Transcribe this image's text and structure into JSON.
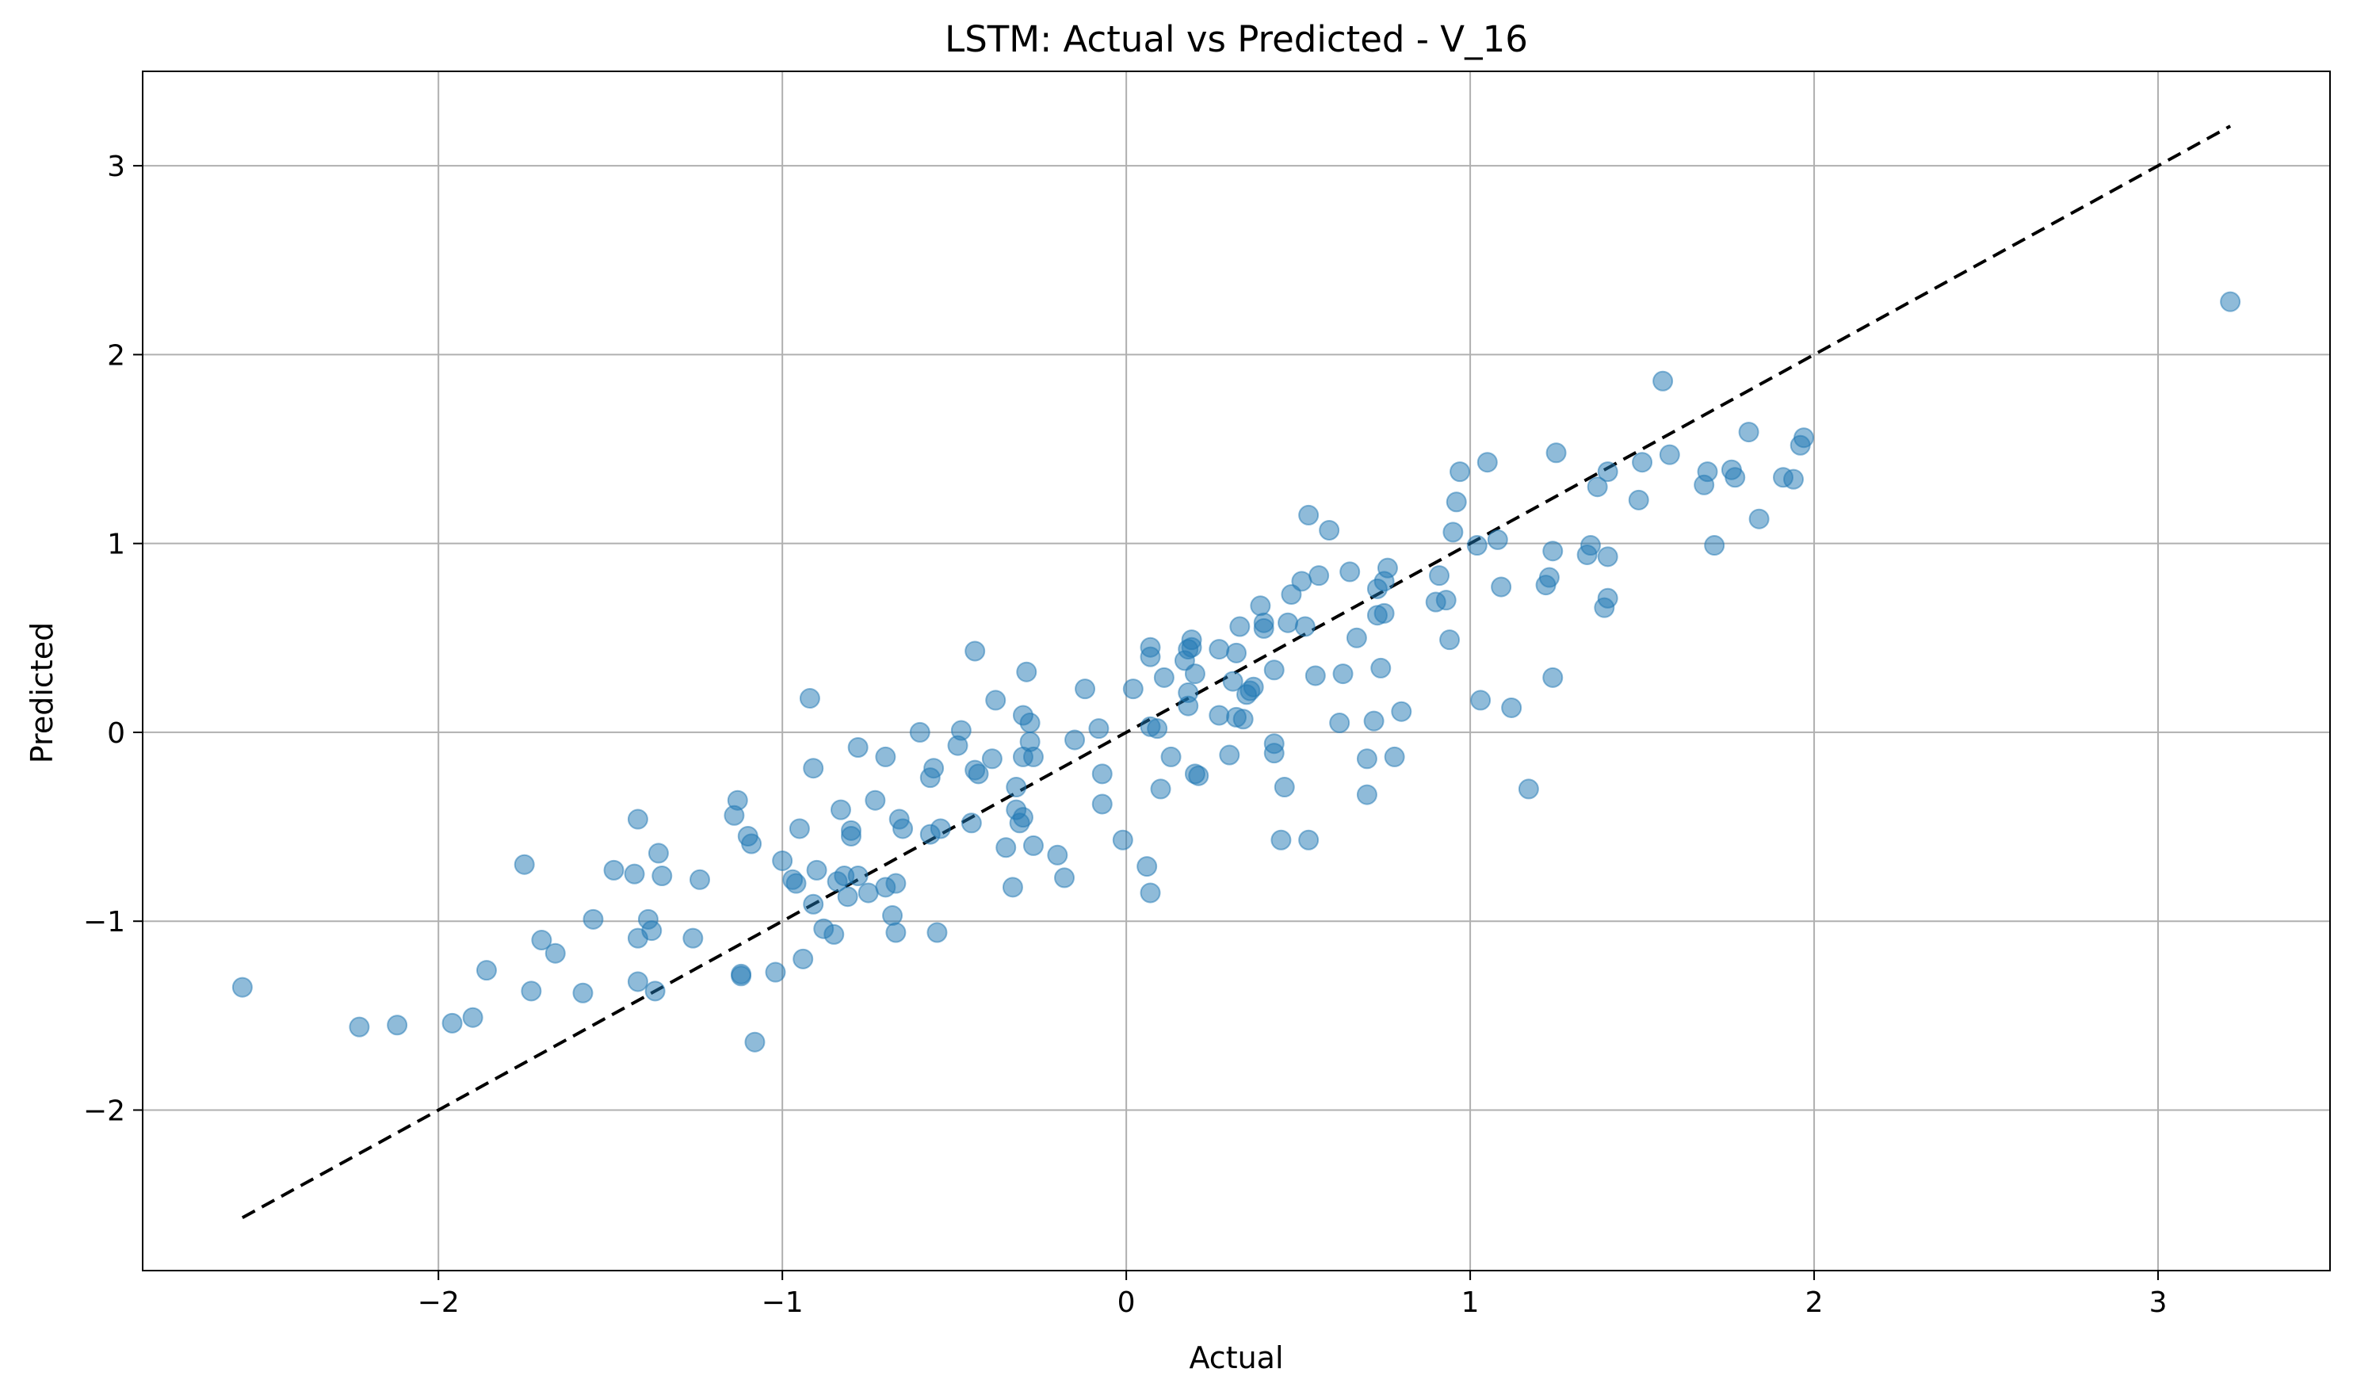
{
  "chart_data": {
    "type": "scatter",
    "title": "LSTM: Actual vs Predicted - V_16",
    "xlabel": "Actual",
    "ylabel": "Predicted",
    "xlim": [
      -2.86,
      3.5
    ],
    "ylim": [
      -2.85,
      3.5
    ],
    "xticks": [
      -2,
      -1,
      0,
      1,
      2,
      3
    ],
    "yticks": [
      -2,
      -1,
      0,
      1,
      2,
      3
    ],
    "xtick_labels": [
      "−2",
      "−1",
      "0",
      "1",
      "2",
      "3"
    ],
    "ytick_labels": [
      "−2",
      "−1",
      "0",
      "1",
      "2",
      "3"
    ],
    "grid": true,
    "point_color": "#1f77b4",
    "point_alpha": 0.5,
    "reference_line": {
      "style": "dashed",
      "color": "#000000",
      "x": [
        -2.57,
        3.21
      ],
      "y": [
        -2.57,
        3.21
      ]
    },
    "points": [
      {
        "x": -2.57,
        "y": -1.35
      },
      {
        "x": -2.23,
        "y": -1.56
      },
      {
        "x": -2.12,
        "y": -1.55
      },
      {
        "x": -1.96,
        "y": -1.54
      },
      {
        "x": -1.9,
        "y": -1.51
      },
      {
        "x": -1.86,
        "y": -1.26
      },
      {
        "x": -1.75,
        "y": -0.7
      },
      {
        "x": -1.73,
        "y": -1.37
      },
      {
        "x": -1.7,
        "y": -1.1
      },
      {
        "x": -1.66,
        "y": -1.17
      },
      {
        "x": -1.58,
        "y": -1.38
      },
      {
        "x": -1.55,
        "y": -0.99
      },
      {
        "x": -1.49,
        "y": -0.73
      },
      {
        "x": -1.43,
        "y": -0.75
      },
      {
        "x": -1.42,
        "y": -1.09
      },
      {
        "x": -1.42,
        "y": -1.32
      },
      {
        "x": -1.42,
        "y": -0.46
      },
      {
        "x": -1.39,
        "y": -0.99
      },
      {
        "x": -1.38,
        "y": -1.05
      },
      {
        "x": -1.37,
        "y": -1.37
      },
      {
        "x": -1.36,
        "y": -0.64
      },
      {
        "x": -1.35,
        "y": -0.76
      },
      {
        "x": -1.26,
        "y": -1.09
      },
      {
        "x": -1.24,
        "y": -0.78
      },
      {
        "x": -1.14,
        "y": -0.44
      },
      {
        "x": -1.13,
        "y": -0.36
      },
      {
        "x": -1.12,
        "y": -1.28
      },
      {
        "x": -1.12,
        "y": -1.29
      },
      {
        "x": -1.1,
        "y": -0.55
      },
      {
        "x": -1.09,
        "y": -0.59
      },
      {
        "x": -1.08,
        "y": -1.64
      },
      {
        "x": -1.02,
        "y": -1.27
      },
      {
        "x": -1.0,
        "y": -0.68
      },
      {
        "x": -0.97,
        "y": -0.78
      },
      {
        "x": -0.96,
        "y": -0.8
      },
      {
        "x": -0.95,
        "y": -0.51
      },
      {
        "x": -0.94,
        "y": -1.2
      },
      {
        "x": -0.92,
        "y": 0.18
      },
      {
        "x": -0.91,
        "y": -0.19
      },
      {
        "x": -0.91,
        "y": -0.91
      },
      {
        "x": -0.9,
        "y": -0.73
      },
      {
        "x": -0.88,
        "y": -1.04
      },
      {
        "x": -0.85,
        "y": -1.07
      },
      {
        "x": -0.84,
        "y": -0.79
      },
      {
        "x": -0.83,
        "y": -0.41
      },
      {
        "x": -0.82,
        "y": -0.76
      },
      {
        "x": -0.81,
        "y": -0.87
      },
      {
        "x": -0.8,
        "y": -0.52
      },
      {
        "x": -0.8,
        "y": -0.55
      },
      {
        "x": -0.78,
        "y": -0.08
      },
      {
        "x": -0.78,
        "y": -0.76
      },
      {
        "x": -0.75,
        "y": -0.85
      },
      {
        "x": -0.73,
        "y": -0.36
      },
      {
        "x": -0.7,
        "y": -0.13
      },
      {
        "x": -0.7,
        "y": -0.82
      },
      {
        "x": -0.68,
        "y": -0.97
      },
      {
        "x": -0.67,
        "y": -1.06
      },
      {
        "x": -0.67,
        "y": -0.8
      },
      {
        "x": -0.66,
        "y": -0.46
      },
      {
        "x": -0.65,
        "y": -0.51
      },
      {
        "x": -0.6,
        "y": 0.0
      },
      {
        "x": -0.57,
        "y": -0.24
      },
      {
        "x": -0.57,
        "y": -0.54
      },
      {
        "x": -0.56,
        "y": -0.19
      },
      {
        "x": -0.55,
        "y": -1.06
      },
      {
        "x": -0.54,
        "y": -0.51
      },
      {
        "x": -0.49,
        "y": -0.07
      },
      {
        "x": -0.48,
        "y": 0.01
      },
      {
        "x": -0.45,
        "y": -0.48
      },
      {
        "x": -0.44,
        "y": 0.43
      },
      {
        "x": -0.44,
        "y": -0.2
      },
      {
        "x": -0.43,
        "y": -0.22
      },
      {
        "x": -0.39,
        "y": -0.14
      },
      {
        "x": -0.38,
        "y": 0.17
      },
      {
        "x": -0.35,
        "y": -0.61
      },
      {
        "x": -0.33,
        "y": -0.82
      },
      {
        "x": -0.32,
        "y": -0.29
      },
      {
        "x": -0.32,
        "y": -0.41
      },
      {
        "x": -0.31,
        "y": -0.48
      },
      {
        "x": -0.3,
        "y": -0.45
      },
      {
        "x": -0.3,
        "y": 0.09
      },
      {
        "x": -0.3,
        "y": -0.13
      },
      {
        "x": -0.29,
        "y": 0.32
      },
      {
        "x": -0.28,
        "y": 0.05
      },
      {
        "x": -0.28,
        "y": -0.05
      },
      {
        "x": -0.27,
        "y": -0.6
      },
      {
        "x": -0.27,
        "y": -0.13
      },
      {
        "x": -0.2,
        "y": -0.65
      },
      {
        "x": -0.18,
        "y": -0.77
      },
      {
        "x": -0.15,
        "y": -0.04
      },
      {
        "x": -0.12,
        "y": 0.23
      },
      {
        "x": -0.08,
        "y": 0.02
      },
      {
        "x": -0.07,
        "y": -0.22
      },
      {
        "x": -0.07,
        "y": -0.38
      },
      {
        "x": -0.01,
        "y": -0.57
      },
      {
        "x": 0.02,
        "y": 0.23
      },
      {
        "x": 0.06,
        "y": -0.71
      },
      {
        "x": 0.07,
        "y": -0.85
      },
      {
        "x": 0.07,
        "y": 0.4
      },
      {
        "x": 0.07,
        "y": 0.45
      },
      {
        "x": 0.07,
        "y": 0.03
      },
      {
        "x": 0.09,
        "y": 0.02
      },
      {
        "x": 0.1,
        "y": -0.3
      },
      {
        "x": 0.11,
        "y": 0.29
      },
      {
        "x": 0.13,
        "y": -0.13
      },
      {
        "x": 0.17,
        "y": 0.38
      },
      {
        "x": 0.18,
        "y": 0.44
      },
      {
        "x": 0.18,
        "y": 0.21
      },
      {
        "x": 0.18,
        "y": 0.14
      },
      {
        "x": 0.19,
        "y": 0.45
      },
      {
        "x": 0.19,
        "y": 0.49
      },
      {
        "x": 0.2,
        "y": 0.31
      },
      {
        "x": 0.2,
        "y": -0.22
      },
      {
        "x": 0.21,
        "y": -0.23
      },
      {
        "x": 0.27,
        "y": 0.44
      },
      {
        "x": 0.27,
        "y": 0.09
      },
      {
        "x": 0.3,
        "y": -0.12
      },
      {
        "x": 0.31,
        "y": 0.27
      },
      {
        "x": 0.32,
        "y": 0.42
      },
      {
        "x": 0.32,
        "y": 0.08
      },
      {
        "x": 0.33,
        "y": 0.56
      },
      {
        "x": 0.34,
        "y": 0.07
      },
      {
        "x": 0.35,
        "y": 0.2
      },
      {
        "x": 0.36,
        "y": 0.22
      },
      {
        "x": 0.37,
        "y": 0.24
      },
      {
        "x": 0.39,
        "y": 0.67
      },
      {
        "x": 0.4,
        "y": 0.55
      },
      {
        "x": 0.4,
        "y": 0.58
      },
      {
        "x": 0.43,
        "y": -0.06
      },
      {
        "x": 0.43,
        "y": 0.33
      },
      {
        "x": 0.43,
        "y": -0.11
      },
      {
        "x": 0.45,
        "y": -0.57
      },
      {
        "x": 0.46,
        "y": -0.29
      },
      {
        "x": 0.47,
        "y": 0.58
      },
      {
        "x": 0.48,
        "y": 0.73
      },
      {
        "x": 0.51,
        "y": 0.8
      },
      {
        "x": 0.52,
        "y": 0.56
      },
      {
        "x": 0.53,
        "y": 1.15
      },
      {
        "x": 0.53,
        "y": -0.57
      },
      {
        "x": 0.55,
        "y": 0.3
      },
      {
        "x": 0.56,
        "y": 0.83
      },
      {
        "x": 0.59,
        "y": 1.07
      },
      {
        "x": 0.62,
        "y": 0.05
      },
      {
        "x": 0.63,
        "y": 0.31
      },
      {
        "x": 0.65,
        "y": 0.85
      },
      {
        "x": 0.67,
        "y": 0.5
      },
      {
        "x": 0.7,
        "y": -0.14
      },
      {
        "x": 0.7,
        "y": -0.33
      },
      {
        "x": 0.72,
        "y": 0.06
      },
      {
        "x": 0.73,
        "y": 0.62
      },
      {
        "x": 0.73,
        "y": 0.76
      },
      {
        "x": 0.74,
        "y": 0.34
      },
      {
        "x": 0.75,
        "y": 0.8
      },
      {
        "x": 0.75,
        "y": 0.63
      },
      {
        "x": 0.76,
        "y": 0.87
      },
      {
        "x": 0.78,
        "y": -0.13
      },
      {
        "x": 0.8,
        "y": 0.11
      },
      {
        "x": 0.9,
        "y": 0.69
      },
      {
        "x": 0.91,
        "y": 0.83
      },
      {
        "x": 0.93,
        "y": 0.7
      },
      {
        "x": 0.94,
        "y": 0.49
      },
      {
        "x": 0.95,
        "y": 1.06
      },
      {
        "x": 0.96,
        "y": 1.22
      },
      {
        "x": 0.97,
        "y": 1.38
      },
      {
        "x": 1.02,
        "y": 0.99
      },
      {
        "x": 1.03,
        "y": 0.17
      },
      {
        "x": 1.05,
        "y": 1.43
      },
      {
        "x": 1.08,
        "y": 1.02
      },
      {
        "x": 1.09,
        "y": 0.77
      },
      {
        "x": 1.12,
        "y": 0.13
      },
      {
        "x": 1.17,
        "y": -0.3
      },
      {
        "x": 1.22,
        "y": 0.78
      },
      {
        "x": 1.23,
        "y": 0.82
      },
      {
        "x": 1.24,
        "y": 0.96
      },
      {
        "x": 1.24,
        "y": 0.29
      },
      {
        "x": 1.25,
        "y": 1.48
      },
      {
        "x": 1.34,
        "y": 0.94
      },
      {
        "x": 1.35,
        "y": 0.99
      },
      {
        "x": 1.37,
        "y": 1.3
      },
      {
        "x": 1.39,
        "y": 0.66
      },
      {
        "x": 1.4,
        "y": 0.71
      },
      {
        "x": 1.4,
        "y": 1.38
      },
      {
        "x": 1.4,
        "y": 0.93
      },
      {
        "x": 1.49,
        "y": 1.23
      },
      {
        "x": 1.5,
        "y": 1.43
      },
      {
        "x": 1.56,
        "y": 1.86
      },
      {
        "x": 1.58,
        "y": 1.47
      },
      {
        "x": 1.68,
        "y": 1.31
      },
      {
        "x": 1.69,
        "y": 1.38
      },
      {
        "x": 1.71,
        "y": 0.99
      },
      {
        "x": 1.76,
        "y": 1.39
      },
      {
        "x": 1.77,
        "y": 1.35
      },
      {
        "x": 1.81,
        "y": 1.59
      },
      {
        "x": 1.84,
        "y": 1.13
      },
      {
        "x": 1.91,
        "y": 1.35
      },
      {
        "x": 1.94,
        "y": 1.34
      },
      {
        "x": 1.96,
        "y": 1.52
      },
      {
        "x": 1.97,
        "y": 1.56
      },
      {
        "x": 3.21,
        "y": 2.28
      }
    ]
  }
}
